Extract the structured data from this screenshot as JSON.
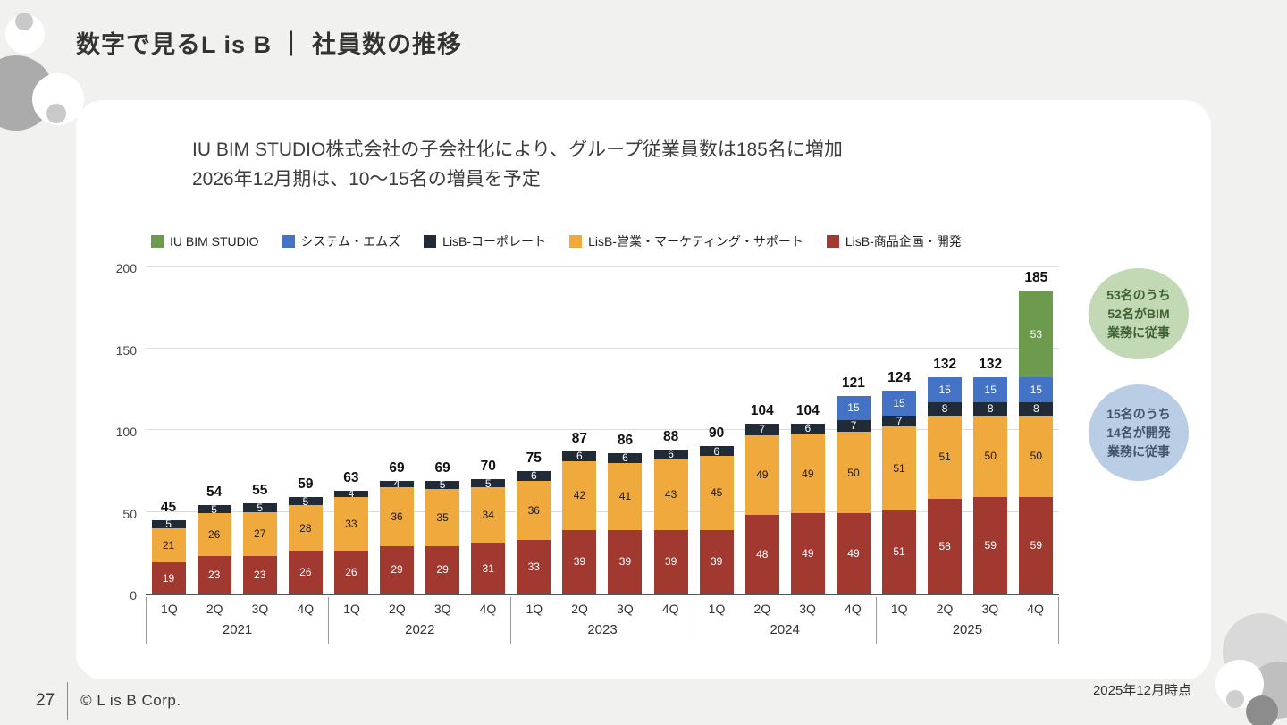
{
  "header": {
    "title": "数字で見るL is B ｜ 社員数の推移"
  },
  "intro": {
    "line1": "IU BIM STUDIO株式会社の子会社化により、グループ従業員数は185名に増加",
    "line2": "2026年12月期は、10〜15名の増員を予定"
  },
  "chart_data": {
    "type": "bar",
    "subtype": "stacked",
    "categories": [
      "1Q",
      "2Q",
      "3Q",
      "4Q",
      "1Q",
      "2Q",
      "3Q",
      "4Q",
      "1Q",
      "2Q",
      "3Q",
      "4Q",
      "1Q",
      "2Q",
      "3Q",
      "4Q",
      "1Q",
      "2Q",
      "3Q",
      "4Q"
    ],
    "year_groups": [
      {
        "label": "2021",
        "span": 4
      },
      {
        "label": "2022",
        "span": 4
      },
      {
        "label": "2023",
        "span": 4
      },
      {
        "label": "2024",
        "span": 4
      },
      {
        "label": "2025",
        "span": 4
      }
    ],
    "series": [
      {
        "name": "LisB-商品企画・開発",
        "color": "#A23931",
        "label_color": "#FFFFFF",
        "values": [
          19,
          23,
          23,
          26,
          26,
          29,
          29,
          31,
          33,
          39,
          39,
          39,
          39,
          48,
          49,
          49,
          51,
          58,
          59,
          59
        ]
      },
      {
        "name": "LisB-営業・マーケティング・サポート",
        "color": "#F0A93C",
        "label_color": "#1A1A1A",
        "values": [
          21,
          26,
          27,
          28,
          33,
          36,
          35,
          34,
          36,
          42,
          41,
          43,
          45,
          49,
          49,
          50,
          51,
          51,
          50,
          50
        ]
      },
      {
        "name": "LisB-コーポレート",
        "color": "#212B38",
        "label_color": "#FFFFFF",
        "values": [
          5,
          5,
          5,
          5,
          4,
          4,
          5,
          5,
          6,
          6,
          6,
          6,
          6,
          7,
          6,
          7,
          7,
          8,
          8,
          8
        ]
      },
      {
        "name": "システム・エムズ",
        "color": "#4472C4",
        "label_color": "#FFFFFF",
        "values": [
          0,
          0,
          0,
          0,
          0,
          0,
          0,
          0,
          0,
          0,
          0,
          0,
          0,
          0,
          0,
          15,
          15,
          15,
          15,
          15
        ]
      },
      {
        "name": "IU BIM STUDIO",
        "color": "#6D9B4E",
        "label_color": "#FFFFFF",
        "values": [
          0,
          0,
          0,
          0,
          0,
          0,
          0,
          0,
          0,
          0,
          0,
          0,
          0,
          0,
          0,
          0,
          0,
          0,
          0,
          53
        ]
      }
    ],
    "totals": [
      45,
      54,
      55,
      59,
      63,
      69,
      69,
      70,
      75,
      87,
      86,
      88,
      90,
      104,
      104,
      121,
      124,
      132,
      132,
      185
    ],
    "ylim": [
      0,
      200
    ],
    "yticks": [
      0,
      50,
      100,
      150,
      200
    ],
    "grid": true,
    "legend_position": "top"
  },
  "annotations": {
    "green_bubble": {
      "text": "53名のうち\n52名がBIM\n業務に従事",
      "bg": "#C3D8B4",
      "fg": "#3E6233"
    },
    "blue_bubble": {
      "text": "15名のうち\n14名が開発\n業務に従事",
      "bg": "#B9CEE5",
      "fg": "#44546A"
    }
  },
  "card": {
    "asof": "2025年12月時点"
  },
  "footer": {
    "page": "27",
    "copyright": "© L is B Corp."
  }
}
